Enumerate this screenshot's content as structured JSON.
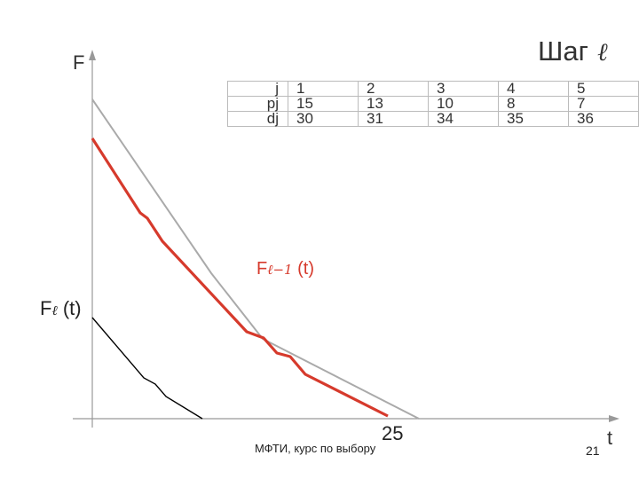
{
  "slide": {
    "title_word": "Шаг",
    "title_symbol": "ℓ",
    "footer": "МФТИ, курс по выбору",
    "page_number": "21"
  },
  "axes": {
    "y_label": "F",
    "x_label": "t",
    "tick_label": "25"
  },
  "curves": {
    "prev": {
      "name": "F",
      "index": "ℓ−1",
      "arg": "(t)",
      "color": "#d63a2c"
    },
    "current": {
      "name": "F",
      "index": "ℓ",
      "arg": "(t)",
      "color": "#000000"
    },
    "envelope_color": "#aaaaaa"
  },
  "table": {
    "headers": [
      "j",
      "pj",
      "dj"
    ],
    "rows": [
      [
        "1",
        "2",
        "3",
        "4",
        "5"
      ],
      [
        "15",
        "13",
        "10",
        "8",
        "7"
      ],
      [
        "30",
        "31",
        "34",
        "35",
        "36"
      ]
    ]
  }
}
